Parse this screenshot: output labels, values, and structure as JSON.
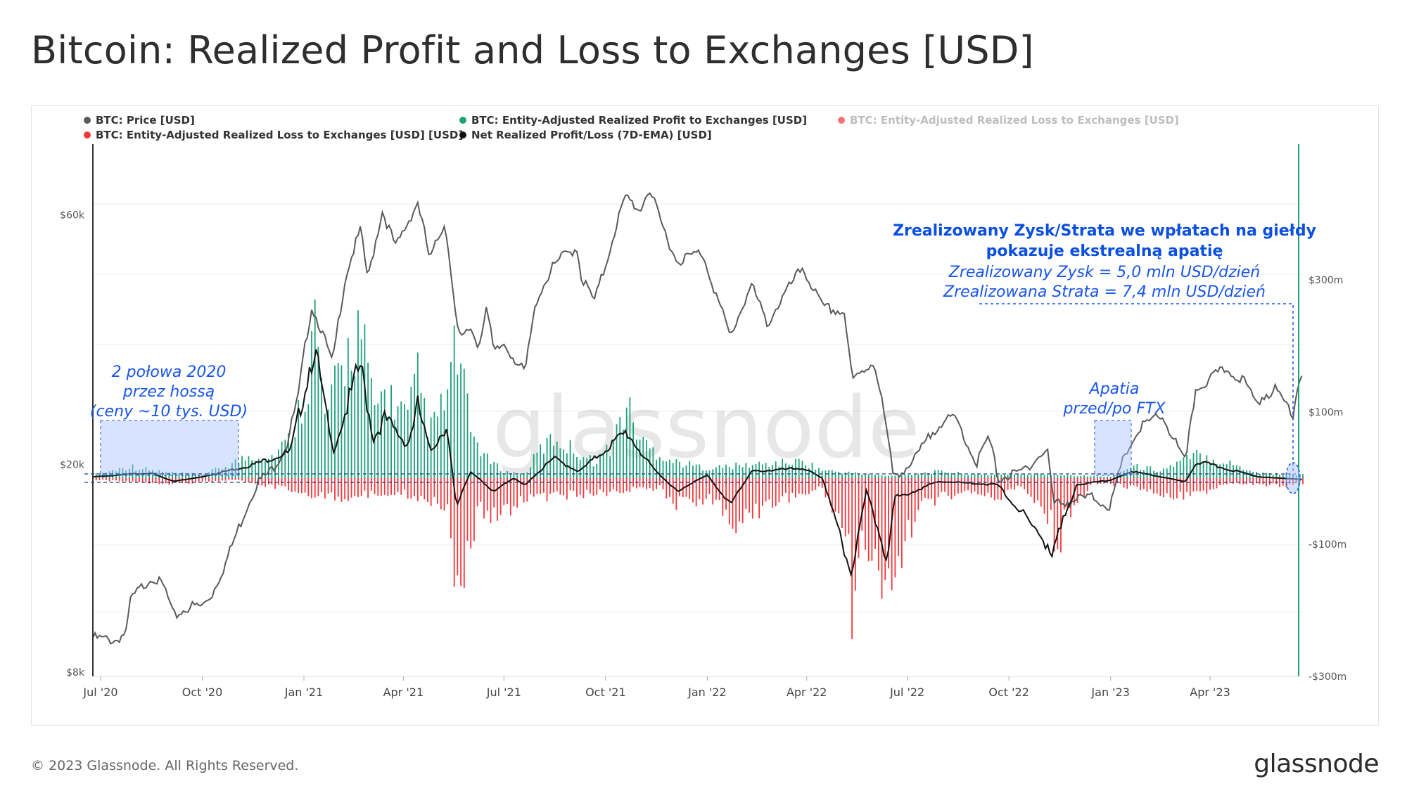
{
  "title": "Bitcoin: Realized Profit and Loss to Exchanges [USD]",
  "footer": {
    "copyright": "© 2023 Glassnode. All Rights Reserved.",
    "logo": "glassnode"
  },
  "watermark": "glassnode",
  "colors": {
    "price": "#5a5a5a",
    "profit": "#1ea07a",
    "loss": "#f2363b",
    "net": "#111111",
    "annotation": "#1a56e8",
    "right_axis": "#1ea07a"
  },
  "legend": [
    {
      "label": "BTC: Price [USD]",
      "color": "#5a5a5a",
      "muted": false
    },
    {
      "label": "BTC: Entity-Adjusted Realized Profit to Exchanges [USD]",
      "color": "#1ea07a",
      "muted": false
    },
    {
      "label": "BTC: Entity-Adjusted Realized Loss to Exchanges [USD]",
      "color": "#f2363b",
      "muted": true
    },
    {
      "label": "BTC: Entity-Adjusted Realized Loss to Exchanges [USD] [USD]",
      "color": "#f2363b",
      "muted": false
    },
    {
      "label": "Net Realized Profit/Loss (7D-EMA) [USD]",
      "color": "#111111",
      "muted": false
    }
  ],
  "annotations": {
    "main_title_1": "Zrealizowany Zysk/Strata we wpłatach na giełdy",
    "main_title_2": "pokazuje ekstrealną apatię",
    "main_line_1": "Zrealizowany Zysk = 5,0 mln USD/dzień",
    "main_line_2": "Zrealizowana Strata = 7,4 mln USD/dzień",
    "h2020_1": "2 połowa 2020",
    "h2020_2": "przez hossą",
    "h2020_3": "(ceny ~10 tys. USD)",
    "ftx_1": "Apatia",
    "ftx_2": "przed/po FTX"
  },
  "chart_data": {
    "type": "area",
    "x_ticks": [
      "Jul '20",
      "Oct '20",
      "Jan '21",
      "Apr '21",
      "Jul '21",
      "Oct '21",
      "Jan '22",
      "Apr '22",
      "Jul '22",
      "Oct '22",
      "Jan '23",
      "Apr '23"
    ],
    "x_tick_dates": [
      "2020-07-01",
      "2020-10-01",
      "2021-01-01",
      "2021-04-01",
      "2021-07-01",
      "2021-10-01",
      "2022-01-01",
      "2022-04-01",
      "2022-07-01",
      "2022-10-01",
      "2023-01-01",
      "2023-04-01"
    ],
    "x_range": [
      "2020-06-24",
      "2023-06-24"
    ],
    "left_axis": {
      "label_ticks": [
        "$8k",
        "$20k",
        "$60k"
      ],
      "tick_values": [
        8000,
        20000,
        60000
      ],
      "scale": "log",
      "range": [
        8000,
        70000
      ]
    },
    "right_axis": {
      "label_ticks": [
        "$300m",
        "$100m",
        "-$100m",
        "-$300m"
      ],
      "tick_values": [
        300000000,
        100000000,
        -100000000,
        -300000000
      ],
      "range": [
        -300000000,
        300000000
      ]
    },
    "series": [
      {
        "name": "BTC: Price [USD]",
        "axis": "left",
        "points": [
          [
            "2020-06-25",
            9300
          ],
          [
            "2020-07-15",
            9200
          ],
          [
            "2020-07-25",
            9600
          ],
          [
            "2020-07-28",
            11000
          ],
          [
            "2020-08-10",
            11800
          ],
          [
            "2020-08-17",
            12200
          ],
          [
            "2020-08-28",
            11600
          ],
          [
            "2020-09-05",
            10200
          ],
          [
            "2020-09-20",
            10700
          ],
          [
            "2020-10-01",
            10700
          ],
          [
            "2020-10-10",
            11300
          ],
          [
            "2020-10-22",
            12900
          ],
          [
            "2020-11-05",
            15500
          ],
          [
            "2020-11-20",
            18500
          ],
          [
            "2020-12-01",
            19300
          ],
          [
            "2020-12-16",
            21500
          ],
          [
            "2020-12-27",
            27000
          ],
          [
            "2021-01-08",
            40000
          ],
          [
            "2021-01-15",
            37000
          ],
          [
            "2021-01-27",
            31000
          ],
          [
            "2021-02-08",
            46000
          ],
          [
            "2021-02-21",
            56000
          ],
          [
            "2021-02-28",
            45000
          ],
          [
            "2021-03-13",
            61000
          ],
          [
            "2021-03-25",
            52000
          ],
          [
            "2021-04-05",
            58000
          ],
          [
            "2021-04-14",
            63500
          ],
          [
            "2021-04-25",
            49000
          ],
          [
            "2021-05-08",
            58000
          ],
          [
            "2021-05-13",
            49500
          ],
          [
            "2021-05-19",
            37000
          ],
          [
            "2021-05-23",
            34500
          ],
          [
            "2021-06-01",
            36500
          ],
          [
            "2021-06-08",
            33500
          ],
          [
            "2021-06-15",
            40000
          ],
          [
            "2021-06-22",
            32500
          ],
          [
            "2021-07-01",
            34000
          ],
          [
            "2021-07-20",
            29800
          ],
          [
            "2021-07-31",
            41500
          ],
          [
            "2021-08-14",
            47500
          ],
          [
            "2021-08-23",
            50000
          ],
          [
            "2021-09-06",
            52000
          ],
          [
            "2021-09-08",
            46000
          ],
          [
            "2021-09-21",
            41000
          ],
          [
            "2021-10-01",
            48000
          ],
          [
            "2021-10-15",
            61500
          ],
          [
            "2021-10-20",
            65000
          ],
          [
            "2021-11-01",
            61000
          ],
          [
            "2021-11-09",
            67500
          ],
          [
            "2021-11-20",
            58000
          ],
          [
            "2021-12-04",
            49000
          ],
          [
            "2021-12-27",
            51000
          ],
          [
            "2022-01-10",
            41500
          ],
          [
            "2022-01-22",
            35000
          ],
          [
            "2022-02-10",
            44000
          ],
          [
            "2022-02-24",
            37000
          ],
          [
            "2022-03-28",
            47500
          ],
          [
            "2022-04-15",
            40000
          ],
          [
            "2022-05-05",
            39000
          ],
          [
            "2022-05-12",
            28800
          ],
          [
            "2022-06-01",
            31500
          ],
          [
            "2022-06-14",
            22000
          ],
          [
            "2022-06-18",
            19000
          ],
          [
            "2022-07-05",
            20000
          ],
          [
            "2022-07-30",
            24000
          ],
          [
            "2022-08-14",
            24500
          ],
          [
            "2022-09-01",
            20000
          ],
          [
            "2022-09-13",
            22500
          ],
          [
            "2022-09-21",
            18800
          ],
          [
            "2022-10-10",
            19200
          ],
          [
            "2022-11-05",
            21300
          ],
          [
            "2022-11-10",
            16800
          ],
          [
            "2022-12-15",
            17300
          ],
          [
            "2023-01-01",
            16600
          ],
          [
            "2023-01-14",
            20900
          ],
          [
            "2023-01-29",
            23600
          ],
          [
            "2023-02-16",
            24800
          ],
          [
            "2023-03-10",
            20000
          ],
          [
            "2023-03-19",
            27800
          ],
          [
            "2023-04-14",
            30400
          ],
          [
            "2023-04-30",
            29200
          ],
          [
            "2023-05-12",
            26300
          ],
          [
            "2023-05-29",
            27900
          ],
          [
            "2023-06-15",
            25100
          ],
          [
            "2023-06-22",
            30000
          ]
        ]
      },
      {
        "name": "BTC: Entity-Adjusted Realized Profit to Exchanges [USD]",
        "axis": "right",
        "unit": "USD/day",
        "points": [
          [
            "2020-06-25",
            5000000
          ],
          [
            "2020-07-28",
            18000000
          ],
          [
            "2020-08-15",
            12000000
          ],
          [
            "2020-09-01",
            8000000
          ],
          [
            "2020-10-01",
            5000000
          ],
          [
            "2020-10-25",
            20000000
          ],
          [
            "2020-11-15",
            35000000
          ],
          [
            "2020-12-01",
            30000000
          ],
          [
            "2020-12-20",
            60000000
          ],
          [
            "2021-01-05",
            150000000
          ],
          [
            "2021-01-10",
            250000000
          ],
          [
            "2021-01-20",
            90000000
          ],
          [
            "2021-02-10",
            190000000
          ],
          [
            "2021-02-21",
            230000000
          ],
          [
            "2021-03-05",
            100000000
          ],
          [
            "2021-03-15",
            130000000
          ],
          [
            "2021-04-05",
            90000000
          ],
          [
            "2021-04-14",
            150000000
          ],
          [
            "2021-04-25",
            70000000
          ],
          [
            "2021-05-10",
            120000000
          ],
          [
            "2021-05-19",
            200000000
          ],
          [
            "2021-06-01",
            70000000
          ],
          [
            "2021-06-15",
            30000000
          ],
          [
            "2021-07-01",
            10000000
          ],
          [
            "2021-07-20",
            5000000
          ],
          [
            "2021-08-01",
            40000000
          ],
          [
            "2021-08-15",
            60000000
          ],
          [
            "2021-09-05",
            40000000
          ],
          [
            "2021-09-20",
            25000000
          ],
          [
            "2021-10-05",
            45000000
          ],
          [
            "2021-10-20",
            110000000
          ],
          [
            "2021-11-01",
            60000000
          ],
          [
            "2021-11-10",
            45000000
          ],
          [
            "2021-12-01",
            25000000
          ],
          [
            "2022-01-01",
            15000000
          ],
          [
            "2022-02-10",
            20000000
          ],
          [
            "2022-03-29",
            25000000
          ],
          [
            "2022-04-15",
            12000000
          ],
          [
            "2022-05-10",
            8000000
          ],
          [
            "2022-06-15",
            3000000
          ],
          [
            "2022-07-30",
            10000000
          ],
          [
            "2022-09-01",
            5000000
          ],
          [
            "2022-11-05",
            6000000
          ],
          [
            "2023-01-01",
            2000000
          ],
          [
            "2023-01-20",
            18000000
          ],
          [
            "2023-02-16",
            12000000
          ],
          [
            "2023-03-20",
            35000000
          ],
          [
            "2023-04-14",
            25000000
          ],
          [
            "2023-05-15",
            8000000
          ],
          [
            "2023-06-22",
            5000000
          ]
        ]
      },
      {
        "name": "BTC: Entity-Adjusted Realized Loss to Exchanges [USD] [USD]",
        "axis": "right",
        "unit": "USD/day",
        "points": [
          [
            "2020-06-25",
            -3000000
          ],
          [
            "2020-09-05",
            -8000000
          ],
          [
            "2020-11-01",
            -3000000
          ],
          [
            "2021-01-12",
            -25000000
          ],
          [
            "2021-01-27",
            -30000000
          ],
          [
            "2021-02-28",
            -25000000
          ],
          [
            "2021-03-25",
            -20000000
          ],
          [
            "2021-04-18",
            -30000000
          ],
          [
            "2021-05-12",
            -40000000
          ],
          [
            "2021-05-19",
            -210000000
          ],
          [
            "2021-05-24",
            -140000000
          ],
          [
            "2021-06-08",
            -50000000
          ],
          [
            "2021-06-22",
            -60000000
          ],
          [
            "2021-07-20",
            -30000000
          ],
          [
            "2021-09-07",
            -25000000
          ],
          [
            "2021-11-20",
            -15000000
          ],
          [
            "2021-12-04",
            -40000000
          ],
          [
            "2022-01-10",
            -30000000
          ],
          [
            "2022-01-22",
            -75000000
          ],
          [
            "2022-02-24",
            -40000000
          ],
          [
            "2022-04-15",
            -15000000
          ],
          [
            "2022-05-09",
            -90000000
          ],
          [
            "2022-05-12",
            -210000000
          ],
          [
            "2022-05-20",
            -80000000
          ],
          [
            "2022-06-13",
            -190000000
          ],
          [
            "2022-06-18",
            -170000000
          ],
          [
            "2022-07-10",
            -40000000
          ],
          [
            "2022-08-20",
            -20000000
          ],
          [
            "2022-09-21",
            -30000000
          ],
          [
            "2022-10-10",
            -10000000
          ],
          [
            "2022-11-09",
            -70000000
          ],
          [
            "2022-11-10",
            -165000000
          ],
          [
            "2022-11-20",
            -60000000
          ],
          [
            "2022-12-15",
            -10000000
          ],
          [
            "2023-01-01",
            -8000000
          ],
          [
            "2023-03-10",
            -30000000
          ],
          [
            "2023-04-20",
            -8000000
          ],
          [
            "2023-06-15",
            -12000000
          ],
          [
            "2023-06-22",
            -7400000
          ]
        ]
      },
      {
        "name": "Net Realized Profit/Loss (7D-EMA) [USD]",
        "axis": "right",
        "unit": "USD/day",
        "points": [
          [
            "2020-06-25",
            2000000
          ],
          [
            "2020-08-15",
            8000000
          ],
          [
            "2020-09-05",
            -5000000
          ],
          [
            "2020-10-01",
            2000000
          ],
          [
            "2020-11-15",
            20000000
          ],
          [
            "2020-12-20",
            40000000
          ],
          [
            "2021-01-10",
            200000000
          ],
          [
            "2021-01-27",
            40000000
          ],
          [
            "2021-02-21",
            170000000
          ],
          [
            "2021-03-05",
            60000000
          ],
          [
            "2021-03-15",
            90000000
          ],
          [
            "2021-04-05",
            50000000
          ],
          [
            "2021-04-14",
            110000000
          ],
          [
            "2021-04-25",
            40000000
          ],
          [
            "2021-05-10",
            80000000
          ],
          [
            "2021-05-19",
            -40000000
          ],
          [
            "2021-06-01",
            10000000
          ],
          [
            "2021-06-22",
            -20000000
          ],
          [
            "2021-07-10",
            0
          ],
          [
            "2021-07-20",
            -10000000
          ],
          [
            "2021-08-15",
            30000000
          ],
          [
            "2021-09-07",
            10000000
          ],
          [
            "2021-10-20",
            70000000
          ],
          [
            "2021-11-10",
            20000000
          ],
          [
            "2021-12-04",
            -20000000
          ],
          [
            "2022-01-01",
            5000000
          ],
          [
            "2022-01-22",
            -40000000
          ],
          [
            "2022-02-10",
            10000000
          ],
          [
            "2022-03-29",
            15000000
          ],
          [
            "2022-04-15",
            0
          ],
          [
            "2022-05-12",
            -140000000
          ],
          [
            "2022-05-25",
            -20000000
          ],
          [
            "2022-06-13",
            -120000000
          ],
          [
            "2022-06-20",
            -30000000
          ],
          [
            "2022-07-30",
            -5000000
          ],
          [
            "2022-09-21",
            -10000000
          ],
          [
            "2022-11-10",
            -110000000
          ],
          [
            "2022-12-01",
            -10000000
          ],
          [
            "2023-01-01",
            -3000000
          ],
          [
            "2023-01-20",
            10000000
          ],
          [
            "2023-03-10",
            -5000000
          ],
          [
            "2023-03-20",
            25000000
          ],
          [
            "2023-04-14",
            15000000
          ],
          [
            "2023-05-15",
            2000000
          ],
          [
            "2023-06-22",
            -2000000
          ]
        ]
      }
    ]
  }
}
